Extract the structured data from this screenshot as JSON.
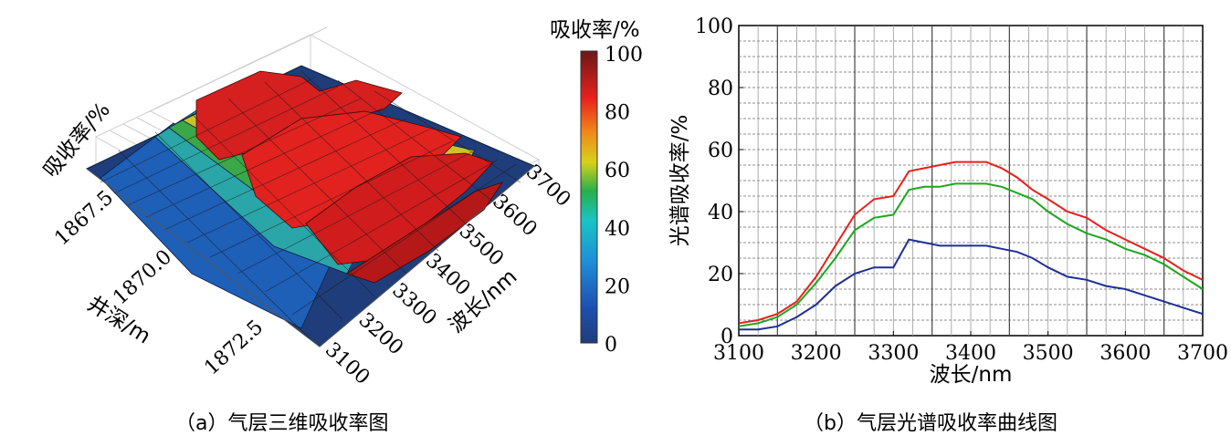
{
  "panel_a": {
    "caption": "（a）气层三维吸收率图",
    "z_axis_label": "吸收率/%",
    "depth_axis_label": "井深/m",
    "depth_ticks": [
      "1867.5",
      "1870.0",
      "1872.5"
    ],
    "wave_axis_label": "波长/nm",
    "wave_ticks": [
      "3100",
      "3200",
      "3300",
      "3400",
      "3500",
      "3600",
      "3700"
    ],
    "colorbar_title": "吸收率/%",
    "colorbar_ticks": [
      "100",
      "80",
      "60",
      "40",
      "20",
      "0"
    ]
  },
  "panel_b": {
    "caption": "（b）气层光谱吸收率曲线图"
  },
  "chart_data": [
    {
      "type": "surface",
      "zlabel": "吸收率/%",
      "ylabel": "井深/m",
      "xlabel": "波长/nm",
      "x_range": [
        3100,
        3700
      ],
      "y_ticks": [
        1867.5,
        1870.0,
        1872.5
      ],
      "z_range": [
        0,
        100
      ],
      "colorbar": {
        "title": "吸收率/%",
        "ticks": [
          0,
          20,
          40,
          60,
          80,
          100
        ],
        "colors": [
          "#1f3d7a",
          "#1e6fc4",
          "#19c4d6",
          "#26b04a",
          "#d8d11a",
          "#f08a1a",
          "#e8201c",
          "#6b1818"
        ]
      },
      "ridges": [
        {
          "depth_position": "shallow",
          "peak_absorbance": 100
        },
        {
          "depth_position": "middle",
          "peak_absorbance": 100
        },
        {
          "depth_position": "deep",
          "peak_absorbance": 95
        }
      ]
    },
    {
      "type": "line",
      "xlabel": "波长/nm",
      "ylabel": "光谱吸收率/%",
      "xlim": [
        3100,
        3700
      ],
      "ylim": [
        0,
        100
      ],
      "xticks": [
        3100,
        3200,
        3300,
        3400,
        3500,
        3600,
        3700
      ],
      "yticks": [
        0,
        20,
        40,
        60,
        80,
        100
      ],
      "grid": true,
      "series": [
        {
          "color": "#e8201c",
          "x": [
            3100,
            3125,
            3150,
            3175,
            3200,
            3225,
            3250,
            3275,
            3300,
            3320,
            3340,
            3360,
            3380,
            3400,
            3420,
            3440,
            3460,
            3480,
            3500,
            3525,
            3550,
            3575,
            3600,
            3625,
            3650,
            3675,
            3700
          ],
          "y": [
            4,
            5,
            7,
            11,
            19,
            29,
            39,
            44,
            45,
            53,
            54,
            55,
            56,
            56,
            56,
            54,
            51,
            47,
            44,
            40,
            38,
            34,
            31,
            28,
            25,
            21,
            18
          ]
        },
        {
          "color": "#1ca81c",
          "x": [
            3100,
            3125,
            3150,
            3175,
            3200,
            3225,
            3250,
            3275,
            3300,
            3320,
            3340,
            3360,
            3380,
            3400,
            3420,
            3440,
            3460,
            3480,
            3500,
            3525,
            3550,
            3575,
            3600,
            3625,
            3650,
            3675,
            3700
          ],
          "y": [
            3,
            4,
            6,
            10,
            17,
            25,
            34,
            38,
            39,
            47,
            48,
            48,
            49,
            49,
            49,
            48,
            46,
            44,
            40,
            36,
            33,
            31,
            28,
            26,
            23,
            19,
            15
          ]
        },
        {
          "color": "#1f2f96",
          "x": [
            3100,
            3125,
            3150,
            3175,
            3200,
            3225,
            3250,
            3275,
            3300,
            3320,
            3340,
            3360,
            3380,
            3400,
            3420,
            3440,
            3460,
            3480,
            3500,
            3525,
            3550,
            3575,
            3600,
            3625,
            3650,
            3675,
            3700
          ],
          "y": [
            2,
            2,
            3,
            6,
            10,
            16,
            20,
            22,
            22,
            31,
            30,
            29,
            29,
            29,
            29,
            28,
            27,
            25,
            22,
            19,
            18,
            16,
            15,
            13,
            11,
            9,
            7
          ]
        }
      ]
    }
  ]
}
